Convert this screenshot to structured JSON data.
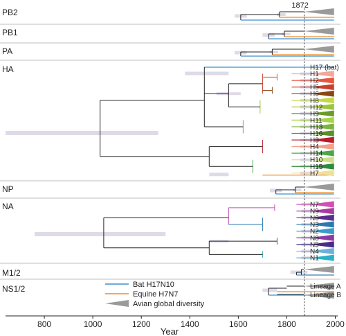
{
  "chart_data": {
    "type": "phylogenetic-tree",
    "xlabel": "Year",
    "xlim": [
      640,
      2010
    ],
    "ticks": [
      800,
      1000,
      1200,
      1400,
      1600,
      1800,
      2000
    ],
    "marker_year": 1872,
    "marker_label": "1872",
    "panels": [
      {
        "name": "PB2",
        "root_year": 1610,
        "split_year": 1770
      },
      {
        "name": "PB1",
        "root_year": 1725,
        "split_year": 1790
      },
      {
        "name": "PA",
        "root_year": 1610,
        "split_year": 1740
      },
      {
        "name": "HA",
        "root_year": 1030,
        "labels": [
          "H17 (bat)",
          "H1",
          "H2",
          "H5",
          "H6",
          "H8",
          "H12",
          "H9",
          "H11",
          "H13",
          "H16",
          "H3",
          "H4",
          "H14",
          "H10",
          "H15",
          "H7"
        ]
      },
      {
        "name": "NP",
        "root_year": 1755,
        "split_year": 1835
      },
      {
        "name": "NA",
        "root_year": 1045,
        "labels": [
          "N7",
          "N9",
          "N6",
          "N3",
          "N2",
          "N8",
          "N5",
          "N4",
          "N1"
        ]
      },
      {
        "name": "M1/2",
        "root_year": 1840,
        "split_year": 1860
      },
      {
        "name": "NS1/2",
        "root_year": 1725,
        "labels": [
          "Lineage A",
          "Lineage B"
        ]
      }
    ],
    "legend": [
      {
        "label": "Bat H17N10",
        "color": "#3a8fd0"
      },
      {
        "label": "Equine H7N7",
        "color": "#f08a1e"
      },
      {
        "label": "Avian global diversity",
        "color": "#9a9a9a"
      }
    ],
    "subtype_colors": {
      "H1": "#f2a79a",
      "H2": "#e8543c",
      "H5": "#c8402c",
      "H6": "#8b4513",
      "H8": "#c4d94a",
      "H12": "#9bc53d",
      "H9": "#6a9a2a",
      "H11": "#a8d44a",
      "H13": "#7cb342",
      "H16": "#5a8f2a",
      "H3": "#b81f2a",
      "H4": "#f4a08a",
      "H14": "#4aa84a",
      "H10": "#cfe08a",
      "H15": "#2e8b3a",
      "H7": "#f0e098",
      "N7": "#d04fb0",
      "N9": "#a83aa0",
      "N6": "#5a2d8a",
      "N3": "#2a7ab0",
      "N2": "#3a9ac8",
      "N8": "#8a3aa0",
      "N5": "#4a2a8a",
      "N4": "#6ab0d8",
      "N1": "#2ab0c8"
    }
  }
}
